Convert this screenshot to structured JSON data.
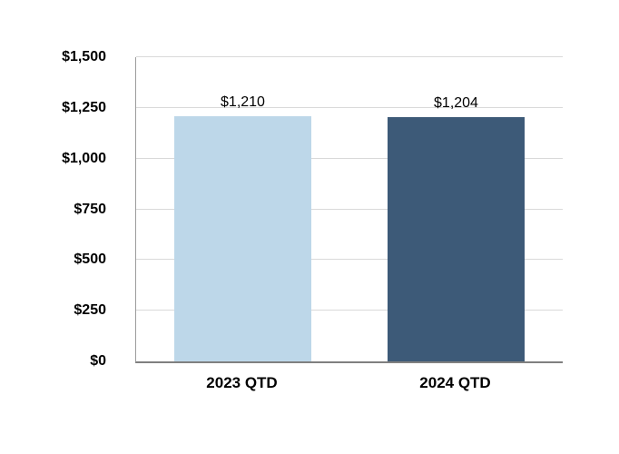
{
  "chart_data": {
    "type": "bar",
    "categories": [
      "2023 QTD",
      "2024 QTD"
    ],
    "values": [
      1210,
      1204
    ],
    "value_labels": [
      "$1,210",
      "$1,204"
    ],
    "series_colors": [
      "#bdd7e9",
      "#3d5a78"
    ],
    "title": "",
    "xlabel": "",
    "ylabel": "",
    "ylim": [
      0,
      1500
    ],
    "ytick_step": 250,
    "yticks": [
      0,
      250,
      500,
      750,
      1000,
      1250,
      1500
    ],
    "ytick_labels": [
      "$0",
      "$250",
      "$500",
      "$750",
      "$1,000",
      "$1,250",
      "$1,500"
    ],
    "grid": true,
    "gridline_color": "#d9d9d9",
    "axis_line_color": "#808080",
    "legend": "none",
    "background_color": "#ffffff",
    "label_color": "#000000"
  }
}
